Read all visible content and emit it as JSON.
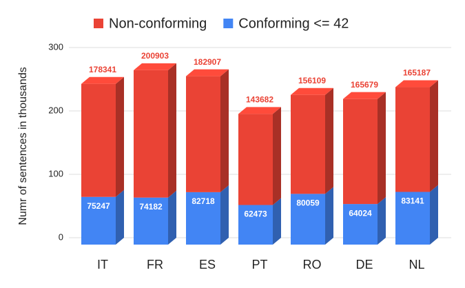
{
  "chart_data": {
    "type": "bar",
    "stacked": true,
    "ylabel": "Numr of sentences in thousands",
    "categories": [
      "IT",
      "FR",
      "ES",
      "PT",
      "RO",
      "DE",
      "NL"
    ],
    "series": [
      {
        "name": "Conforming <= 42",
        "color": "#4285f4",
        "values": [
          75.247,
          74.182,
          82.718,
          62.473,
          80.059,
          64.024,
          83.141
        ],
        "value_labels": [
          "75247",
          "74182",
          "82718",
          "62473",
          "80059",
          "64024",
          "83141"
        ]
      },
      {
        "name": "Non-conforming",
        "color": "#ea4335",
        "values": [
          178.341,
          200.903,
          182.907,
          143.682,
          156.109,
          165.679,
          165.187
        ],
        "value_labels": [
          "178341",
          "200903",
          "182907",
          "143682",
          "156109",
          "165679",
          "165187"
        ]
      }
    ],
    "legend_order": [
      1,
      0
    ],
    "ylim": [
      0,
      300
    ],
    "yticks": [
      0,
      100,
      200,
      300
    ],
    "grid": true
  }
}
